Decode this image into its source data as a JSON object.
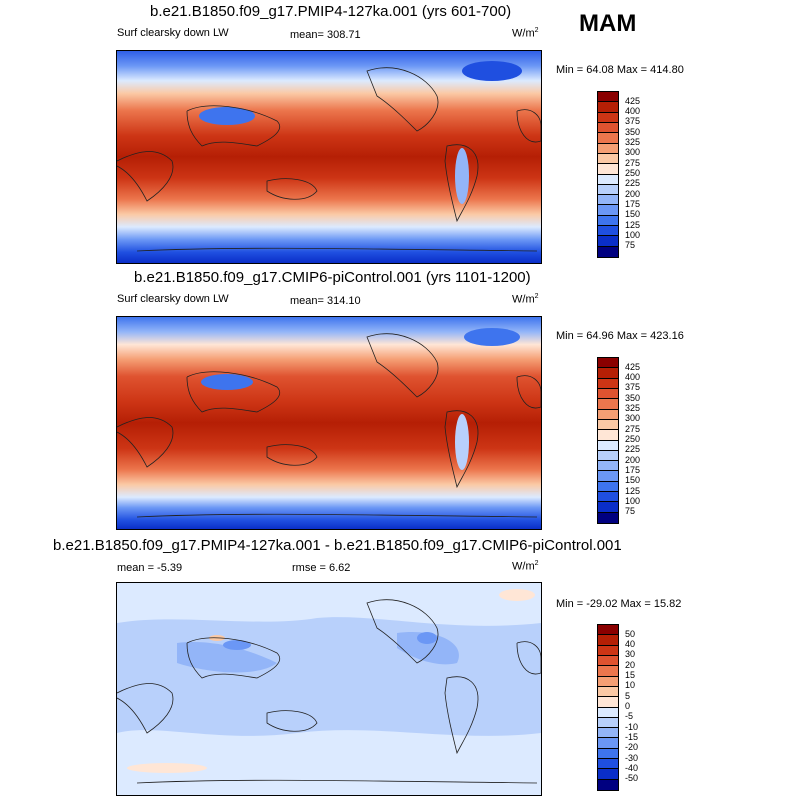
{
  "season": "MAM",
  "colors": {
    "abs_scale": [
      "#000080",
      "#0a2ec8",
      "#1f4fe0",
      "#3e74ee",
      "#6b97f5",
      "#93b5f8",
      "#b8d0fb",
      "#dceaff",
      "#ffe6d6",
      "#fbc9a5",
      "#f59f74",
      "#ec764d",
      "#df5330",
      "#cd3515",
      "#b51f05",
      "#8a0000"
    ],
    "diff_scale": [
      "#000080",
      "#0a2ec8",
      "#1f4fe0",
      "#3e74ee",
      "#6b97f5",
      "#93b5f8",
      "#b8d0fb",
      "#dceaff",
      "#ffe6d6",
      "#fbc9a5",
      "#f59f74",
      "#ec764d",
      "#df5330",
      "#cd3515",
      "#b51f05",
      "#8a0000"
    ]
  },
  "panels": [
    {
      "title": "b.e21.B1850.f09_g17.PMIP4-127ka.001 (yrs 601-700)",
      "variable": "Surf clearsky down LW",
      "mean": "mean= 308.71",
      "units": "W/m",
      "units_sup": "2",
      "minmax": "Min =  64.08 Max = 414.80",
      "labels": [
        "425",
        "400",
        "375",
        "350",
        "325",
        "300",
        "275",
        "250",
        "225",
        "200",
        "175",
        "150",
        "125",
        "100",
        "75"
      ]
    },
    {
      "title": "b.e21.B1850.f09_g17.CMIP6-piControl.001 (yrs 1101-1200)",
      "variable": "Surf clearsky down LW",
      "mean": "mean= 314.10",
      "units": "W/m",
      "units_sup": "2",
      "minmax": "Min =  64.96 Max = 423.16",
      "labels": [
        "425",
        "400",
        "375",
        "350",
        "325",
        "300",
        "275",
        "250",
        "225",
        "200",
        "175",
        "150",
        "125",
        "100",
        "75"
      ]
    },
    {
      "title": "b.e21.B1850.f09_g17.PMIP4-127ka.001 - b.e21.B1850.f09_g17.CMIP6-piControl.001",
      "mean": "mean =  -5.39",
      "rmse": "rmse =   6.62",
      "units": "W/m",
      "units_sup": "2",
      "minmax": "Min = -29.02 Max =  15.82",
      "labels": [
        "50",
        "40",
        "30",
        "20",
        "15",
        "10",
        "5",
        "0",
        "-5",
        "-10",
        "-15",
        "-20",
        "-30",
        "-40",
        "-50"
      ]
    }
  ]
}
